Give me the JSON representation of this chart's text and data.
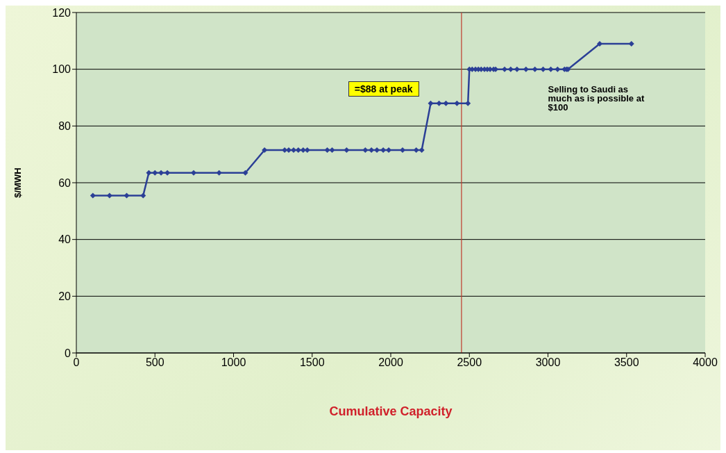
{
  "chart_data": {
    "type": "line",
    "xlabel": "Cumulative Capacity",
    "ylabel": "$/MWH",
    "x": [
      105,
      211,
      320,
      425,
      461,
      500,
      539,
      579,
      746,
      908,
      1075,
      1197,
      1325,
      1351,
      1382,
      1412,
      1443,
      1469,
      1596,
      1627,
      1719,
      1838,
      1877,
      1912,
      1952,
      1987,
      2075,
      2162,
      2197,
      2254,
      2307,
      2351,
      2421,
      2491,
      2500,
      2518,
      2539,
      2557,
      2575,
      2596,
      2614,
      2632,
      2654,
      2667,
      2724,
      2763,
      2803,
      2860,
      2917,
      2969,
      3018,
      3061,
      3105,
      3118,
      3127,
      3329,
      3531
    ],
    "series": [
      {
        "color": "#2b3f96",
        "values": [
          55.5,
          55.5,
          55.5,
          55.5,
          63.5,
          63.5,
          63.5,
          63.5,
          63.5,
          63.5,
          63.5,
          71.5,
          71.5,
          71.5,
          71.5,
          71.5,
          71.5,
          71.5,
          71.5,
          71.5,
          71.5,
          71.5,
          71.5,
          71.5,
          71.5,
          71.5,
          71.5,
          71.5,
          71.5,
          88,
          88,
          88,
          88,
          88,
          100,
          100,
          100,
          100,
          100,
          100,
          100,
          100,
          100,
          100,
          100,
          100,
          100,
          100,
          100,
          100,
          100,
          100,
          100,
          100,
          100,
          109,
          109
        ]
      }
    ],
    "xlim": [
      0,
      4000
    ],
    "xticks": [
      0,
      500,
      1000,
      1500,
      2000,
      2500,
      3000,
      3500,
      4000
    ],
    "ylim": [
      0,
      120
    ],
    "yticks": [
      0,
      20,
      40,
      60,
      80,
      100,
      120
    ],
    "grid": "y",
    "marker": "diamond",
    "line_style": "solid",
    "ref_lines": [
      {
        "axis": "x",
        "value": 2450,
        "color": "#c0392b"
      }
    ],
    "annotations": [
      "=$88 at peak",
      "Selling to Saudi as much as is possible at $100"
    ]
  }
}
